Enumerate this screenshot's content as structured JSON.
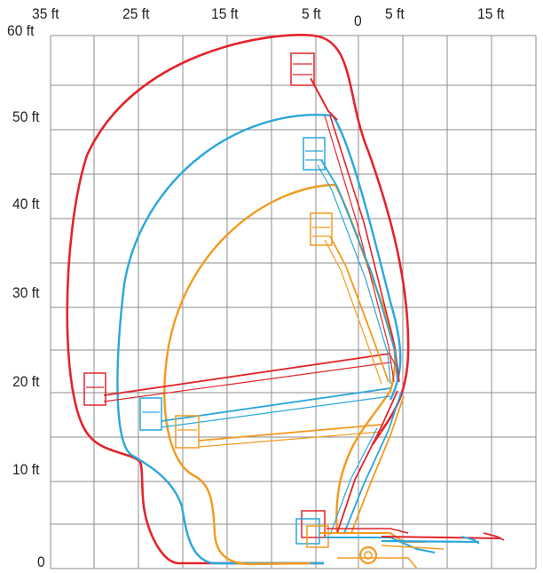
{
  "x_ticks": [
    {
      "label": "35 ft"
    },
    {
      "label": "25 ft"
    },
    {
      "label": "15 ft"
    },
    {
      "label": "5 ft"
    },
    {
      "label": "0"
    },
    {
      "label": "5 ft"
    },
    {
      "label": "15 ft"
    }
  ],
  "y_ticks": [
    {
      "label": "60 ft"
    },
    {
      "label": "50 ft"
    },
    {
      "label": "40 ft"
    },
    {
      "label": "30 ft"
    },
    {
      "label": "20 ft"
    },
    {
      "label": "10 ft"
    },
    {
      "label": "0"
    }
  ],
  "colors": {
    "grid": "#8c8c8c",
    "envelope_max": "#e3242b",
    "envelope_mid": "#2aa7dc",
    "envelope_min": "#f39a1e"
  }
}
